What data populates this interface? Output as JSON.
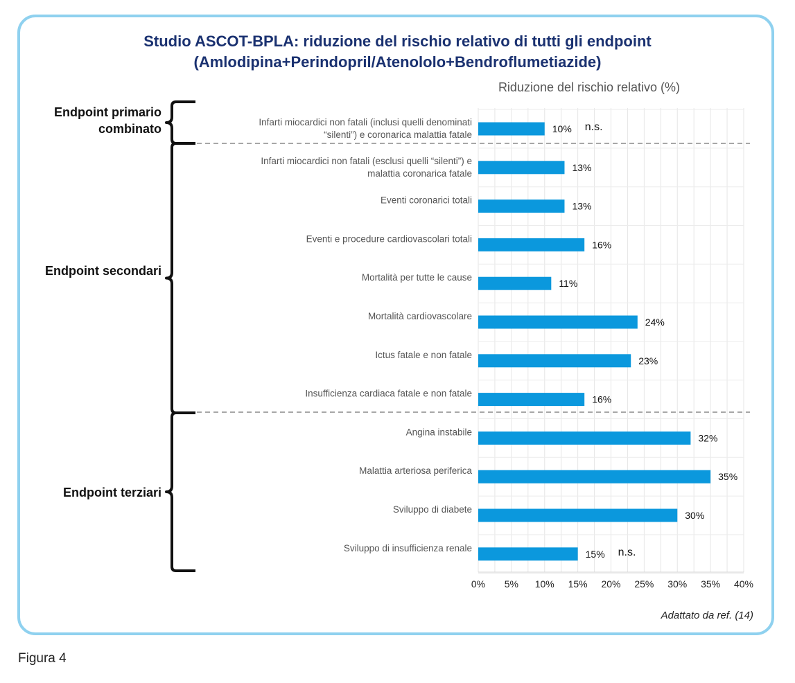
{
  "title_line1": "Studio ASCOT-BPLA: riduzione del rischio relativo di tutti gli endpoint",
  "title_line2": "(Amlodipina+Perindopril/Atenololo+Bendroflumetiazide)",
  "figure_label": "Figura 4",
  "source_note": "Adattato da ref. (14)",
  "groups": [
    {
      "label_line1": "Endpoint primario",
      "label_line2": "combinato"
    },
    {
      "label_line1": "Endpoint secondari",
      "label_line2": ""
    },
    {
      "label_line1": "Endpoint terziari",
      "label_line2": ""
    }
  ],
  "chart_data": {
    "type": "bar",
    "orientation": "horizontal",
    "xlabel": "Riduzione del rischio relativo (%)",
    "xlim": [
      0,
      40
    ],
    "xticks": [
      "0%",
      "5%",
      "10%",
      "15%",
      "20%",
      "25%",
      "30%",
      "35%",
      "40%"
    ],
    "grid": true,
    "bar_color": "#0b98dd",
    "categories": [
      [
        "Infarti miocardici non fatali (inclusi quelli denominati",
        "“silenti”) e coronarica malattia fatale"
      ],
      [
        "Infarti miocardici non fatali (esclusi quelli “silenti”) e",
        "malattia coronarica fatale"
      ],
      [
        "Eventi coronarici totali"
      ],
      [
        "Eventi e procedure cardiovascolari totali"
      ],
      [
        "Mortalità per tutte le cause"
      ],
      [
        "Mortalità cardiovascolare"
      ],
      [
        "Ictus fatale e non fatale"
      ],
      [
        "Insufficienza cardiaca fatale e non fatale"
      ],
      [
        "Angina instabile"
      ],
      [
        "Malattia arteriosa periferica"
      ],
      [
        "Sviluppo di diabete"
      ],
      [
        "Sviluppo di insufficienza renale"
      ]
    ],
    "values": [
      10,
      13,
      13,
      16,
      11,
      24,
      23,
      16,
      32,
      35,
      30,
      15
    ],
    "value_labels": [
      "10%",
      "13%",
      "13%",
      "16%",
      "11%",
      "24%",
      "23%",
      "16%",
      "32%",
      "35%",
      "30%",
      "15%"
    ],
    "annotations": [
      "n.s.",
      "",
      "",
      "",
      "",
      "",
      "",
      "",
      "",
      "",
      "",
      "n.s."
    ]
  }
}
